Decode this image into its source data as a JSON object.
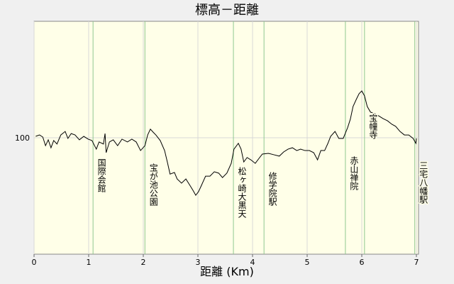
{
  "chart_data": {
    "type": "line",
    "title": "標高－距離",
    "x_label": "距離 (Km)",
    "xlim": [
      0,
      7
    ],
    "xticks": [
      0,
      1,
      2,
      3,
      4,
      5,
      6,
      7
    ],
    "ylim": [
      50,
      150
    ],
    "yticks": [
      100
    ],
    "grid": true,
    "series": [
      {
        "color": "#000000",
        "x": [
          0.03,
          0.1,
          0.16,
          0.21,
          0.26,
          0.31,
          0.36,
          0.42,
          0.49,
          0.57,
          0.62,
          0.68,
          0.75,
          0.83,
          0.91,
          0.99,
          1.06,
          1.14,
          1.19,
          1.27,
          1.3,
          1.32,
          1.38,
          1.45,
          1.53,
          1.61,
          1.71,
          1.79,
          1.87,
          1.95,
          2.03,
          2.08,
          2.13,
          2.18,
          2.23,
          2.31,
          2.39,
          2.44,
          2.49,
          2.57,
          2.62,
          2.7,
          2.78,
          2.86,
          2.91,
          2.96,
          3.01,
          3.06,
          3.14,
          3.22,
          3.3,
          3.38,
          3.45,
          3.53,
          3.61,
          3.66,
          3.74,
          3.79,
          3.84,
          3.9,
          3.97,
          4.05,
          4.13,
          4.18,
          4.29,
          4.39,
          4.49,
          4.57,
          4.65,
          4.73,
          4.81,
          4.88,
          4.96,
          5.04,
          5.12,
          5.19,
          5.25,
          5.32,
          5.38,
          5.43,
          5.51,
          5.58,
          5.66,
          5.74,
          5.79,
          5.84,
          5.9,
          5.95,
          6.0,
          6.05,
          6.1,
          6.16,
          6.23,
          6.31,
          6.39,
          6.47,
          6.55,
          6.62,
          6.7,
          6.78,
          6.86,
          6.94,
          6.99,
          7.0
        ],
        "values": [
          100.6,
          101.2,
          100.3,
          96.6,
          99.1,
          95.7,
          98.8,
          97.3,
          101.2,
          102.7,
          99.7,
          101.8,
          101.2,
          99.1,
          100.6,
          99.4,
          98.8,
          95.1,
          98.2,
          97.3,
          101.8,
          93.6,
          98.2,
          99.1,
          96.6,
          99.4,
          98.2,
          99.4,
          98.2,
          94.5,
          96.6,
          101.2,
          103.7,
          102.4,
          101.2,
          98.8,
          94.5,
          89.6,
          84.4,
          85.1,
          82.3,
          80.5,
          82.3,
          79.3,
          77.4,
          75.3,
          76.8,
          79.3,
          83.5,
          83.5,
          85.4,
          84.8,
          82.9,
          84.8,
          89.0,
          95.1,
          97.6,
          95.1,
          89.6,
          91.5,
          90.5,
          89.0,
          91.5,
          93.0,
          93.3,
          92.7,
          92.1,
          93.9,
          95.1,
          95.7,
          94.5,
          95.1,
          94.5,
          94.5,
          93.6,
          90.5,
          94.5,
          94.5,
          97.6,
          100.6,
          102.7,
          99.7,
          99.7,
          104.3,
          107.9,
          113.4,
          116.5,
          118.9,
          120.1,
          118.0,
          113.4,
          111.0,
          110.4,
          109.4,
          108.2,
          107.3,
          105.8,
          104.9,
          102.7,
          101.2,
          101.2,
          99.7,
          97.6,
          99.7
        ]
      }
    ],
    "annotations": [
      {
        "label": "国際会館",
        "x": 1.08
      },
      {
        "label": "宝が池公園",
        "x": 2.03
      },
      {
        "label": "松ヶ崎大黒天",
        "x": 3.65
      },
      {
        "label": "修学院駅",
        "x": 4.21
      },
      {
        "label": "赤山禅院",
        "x": 5.7
      },
      {
        "label": "宝幢寺",
        "x": 6.05
      },
      {
        "label": "三宅八幡駅",
        "x": 6.97
      }
    ],
    "annotation_color": "#90c890"
  }
}
